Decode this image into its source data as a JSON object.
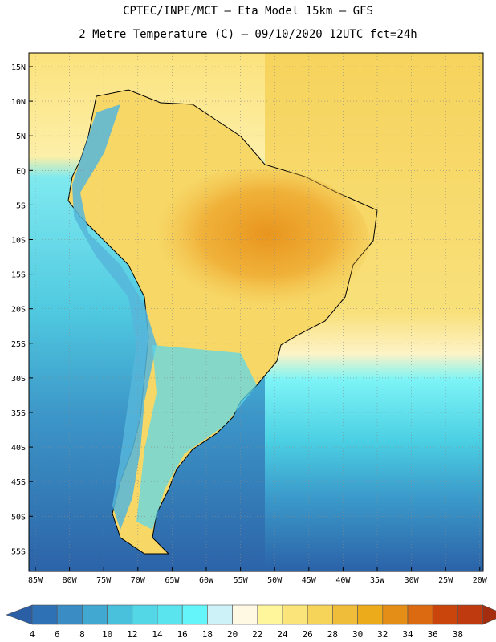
{
  "header": {
    "line1": "CPTEC/INPE/MCT –  Eta Model 15km – GFS",
    "line2": "2 Metre Temperature (C) – 09/10/2020 12UTC fct=24h"
  },
  "map": {
    "lat_labels": [
      "15N",
      "10N",
      "5N",
      "EQ",
      "5S",
      "10S",
      "15S",
      "20S",
      "25S",
      "30S",
      "35S",
      "40S",
      "45S",
      "50S",
      "55S"
    ],
    "lon_labels": [
      "85W",
      "80W",
      "75W",
      "70W",
      "65W",
      "60W",
      "55W",
      "50W",
      "45W",
      "40W",
      "35W",
      "30W",
      "25W",
      "20W"
    ]
  },
  "legend": {
    "values": [
      "4",
      "6",
      "8",
      "10",
      "12",
      "14",
      "16",
      "18",
      "20",
      "22",
      "24",
      "26",
      "28",
      "30",
      "32",
      "34",
      "36",
      "38"
    ],
    "colors": [
      "#2a5ea5",
      "#2f71b5",
      "#3a8cc4",
      "#41a8d2",
      "#4ac1dc",
      "#53d6e6",
      "#5ae5ee",
      "#64f5fa",
      "#cdf3f9",
      "#fff9e3",
      "#fff59a",
      "#fbe47a",
      "#f6d45a",
      "#f0bd3a",
      "#ebab1a",
      "#e48e17",
      "#db6a10",
      "#c9450c",
      "#bf3a0f",
      "#a42d10"
    ]
  }
}
